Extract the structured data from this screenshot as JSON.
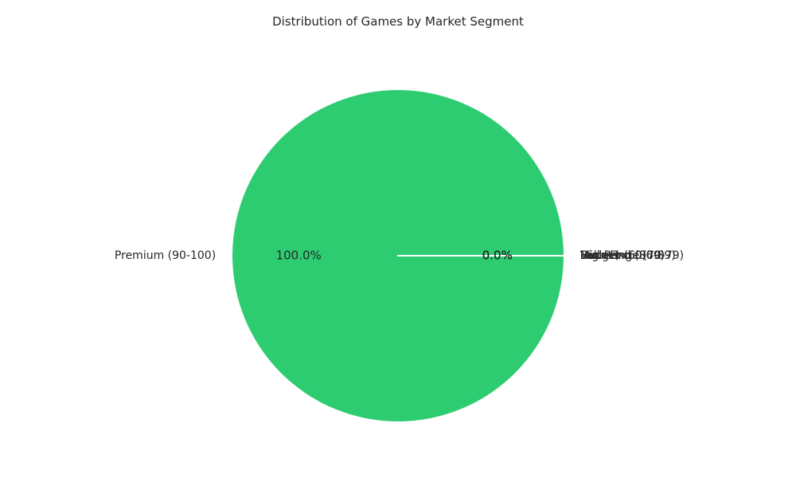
{
  "chart_data": {
    "type": "pie",
    "title": "Distribution of Games by Market Segment",
    "slices": [
      {
        "label": "Premium (90-100)",
        "value": 100.0,
        "pct_label": "100.0%",
        "color": "#2ecc71"
      },
      {
        "label": "High-End (80-89)",
        "value": 0.0,
        "pct_label": "0.0%",
        "color": "#3498db"
      },
      {
        "label": "Mid-Range (70-79)",
        "value": 0.0,
        "pct_label": "0.0%",
        "color": "#9b59b6"
      },
      {
        "label": "Budget (60-69)",
        "value": 0.0,
        "pct_label": "0.0%",
        "color": "#f1c40f"
      },
      {
        "label": "Value (<60)",
        "value": 0.0,
        "pct_label": "0.0%",
        "color": "#e74c3c"
      }
    ],
    "start_angle_deg": 0,
    "direction": "counterclockwise",
    "edge_color": "#ffffff"
  }
}
